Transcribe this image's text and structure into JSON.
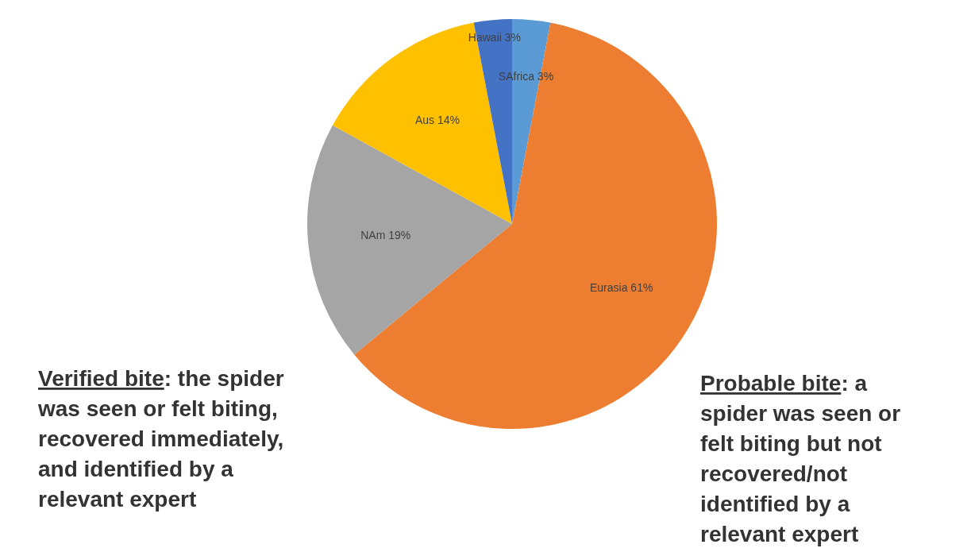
{
  "chart_data": {
    "type": "pie",
    "categories": [
      "SAfrica",
      "Eurasia",
      "NAm",
      "Aus",
      "Hawaii"
    ],
    "values": [
      3,
      61,
      19,
      14,
      3
    ],
    "colors": [
      "#5b9bd5",
      "#ed7d31",
      "#a5a5a5",
      "#ffc000",
      "#4472c4"
    ],
    "value_labels": [
      "3%",
      "61%",
      "19%",
      "14%",
      "3%"
    ],
    "annotations": [
      "Verified bite: the spider was seen or felt biting, recovered immediately, and identified by a relevant expert",
      "Probable bite: a spider was seen or felt biting but not recovered/not identified by a relevant expert"
    ]
  }
}
